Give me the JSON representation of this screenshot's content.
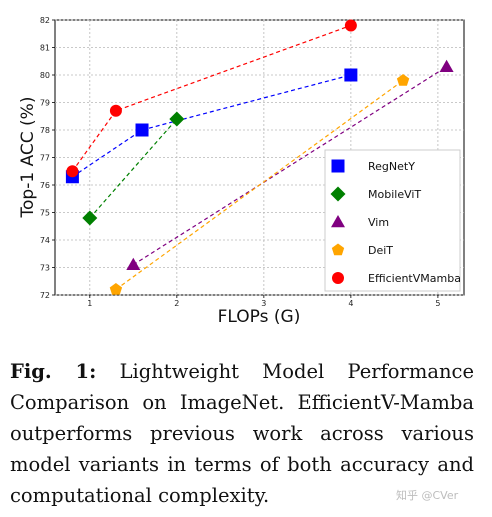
{
  "chart_data": {
    "type": "scatter",
    "xlabel": "FLOPs (G)",
    "ylabel": "Top-1 ACC (%)",
    "xlim": [
      0.6,
      5.3
    ],
    "ylim": [
      72,
      82
    ],
    "xticks": [
      1,
      2,
      3,
      4,
      5
    ],
    "yticks": [
      72,
      73,
      74,
      75,
      76,
      77,
      78,
      79,
      80,
      81,
      82
    ],
    "grid": true,
    "legend_position": "right",
    "series": [
      {
        "name": "RegNetY",
        "marker": "square",
        "color": "#0000ff",
        "points": [
          [
            0.8,
            76.3
          ],
          [
            1.6,
            78.0
          ],
          [
            4.0,
            80.0
          ]
        ]
      },
      {
        "name": "MobileViT",
        "marker": "diamond",
        "color": "#008000",
        "points": [
          [
            1.0,
            74.8
          ],
          [
            2.0,
            78.4
          ]
        ]
      },
      {
        "name": "Vim",
        "marker": "triangle",
        "color": "#800080",
        "points": [
          [
            1.5,
            73.1
          ],
          [
            5.1,
            80.3
          ]
        ]
      },
      {
        "name": "DeiT",
        "marker": "pentagon",
        "color": "#ffa500",
        "points": [
          [
            1.3,
            72.2
          ],
          [
            4.6,
            79.8
          ]
        ]
      },
      {
        "name": "EfficientVMamba",
        "marker": "circle",
        "color": "#ff0000",
        "points": [
          [
            0.8,
            76.5
          ],
          [
            1.3,
            78.7
          ],
          [
            4.0,
            81.8
          ]
        ]
      }
    ]
  },
  "caption": {
    "label": "Fig. 1:",
    "text": "Lightweight Model Performance Comparison on ImageNet. EfficientV-Mamba outperforms previous work across various model variants in terms of both accuracy and computational complexity."
  },
  "watermark": "知乎 @CVer"
}
